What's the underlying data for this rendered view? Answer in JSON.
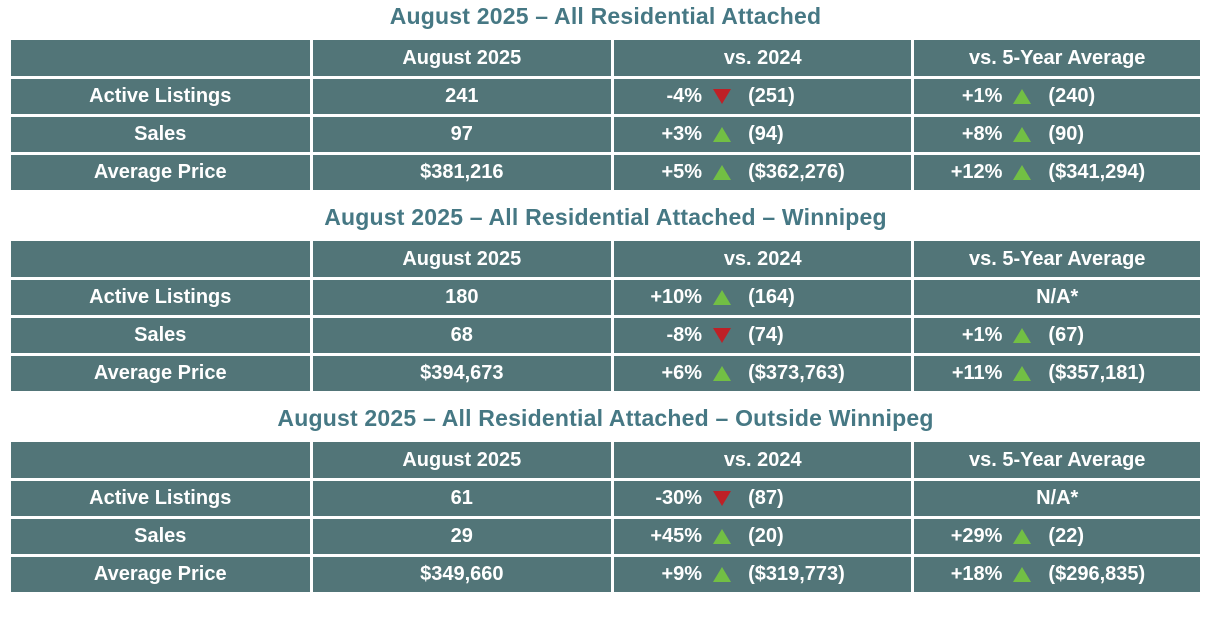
{
  "colors": {
    "page_bg": "#FFFFFF",
    "table_cell_bg": "#527578",
    "title_text": "#467884",
    "cell_text": "#FFFFFF",
    "trend_up_green": "#72BF44",
    "trend_down_red": "#BE2026",
    "grid_line": "#FFFFFF"
  },
  "tables": [
    {
      "title": "August 2025 – All Residential Attached",
      "headers": [
        "",
        "August 2025",
        "vs. 2024",
        "vs. 5-Year Average"
      ],
      "rows": [
        {
          "label": "Active Listings",
          "current": "241",
          "vs_2024": {
            "pct": "-4%",
            "dir": "down",
            "ref": "(251)"
          },
          "vs_5yr": {
            "pct": "+1%",
            "dir": "up",
            "ref": "(240)"
          }
        },
        {
          "label": "Sales",
          "current": "97",
          "vs_2024": {
            "pct": "+3%",
            "dir": "up",
            "ref": "(94)"
          },
          "vs_5yr": {
            "pct": "+8%",
            "dir": "up",
            "ref": "(90)"
          }
        },
        {
          "label": "Average Price",
          "current": "$381,216",
          "vs_2024": {
            "pct": "+5%",
            "dir": "up",
            "ref": "($362,276)"
          },
          "vs_5yr": {
            "pct": "+12%",
            "dir": "up",
            "ref": "($341,294)"
          }
        }
      ]
    },
    {
      "title": "August 2025 – All Residential Attached – Winnipeg",
      "headers": [
        "",
        "August 2025",
        "vs. 2024",
        "vs. 5-Year Average"
      ],
      "rows": [
        {
          "label": "Active Listings",
          "current": "180",
          "vs_2024": {
            "pct": "+10%",
            "dir": "up",
            "ref": "(164)"
          },
          "vs_5yr": {
            "na": "N/A*"
          }
        },
        {
          "label": "Sales",
          "current": "68",
          "vs_2024": {
            "pct": "-8%",
            "dir": "down",
            "ref": "(74)"
          },
          "vs_5yr": {
            "pct": "+1%",
            "dir": "up",
            "ref": "(67)"
          }
        },
        {
          "label": "Average Price",
          "current": "$394,673",
          "vs_2024": {
            "pct": "+6%",
            "dir": "up",
            "ref": "($373,763)"
          },
          "vs_5yr": {
            "pct": "+11%",
            "dir": "up",
            "ref": "($357,181)"
          }
        }
      ]
    },
    {
      "title": "August 2025 – All Residential Attached – Outside Winnipeg",
      "headers": [
        "",
        "August 2025",
        "vs. 2024",
        "vs. 5-Year Average"
      ],
      "rows": [
        {
          "label": "Active Listings",
          "current": "61",
          "vs_2024": {
            "pct": "-30%",
            "dir": "down",
            "ref": "(87)"
          },
          "vs_5yr": {
            "na": "N/A*"
          }
        },
        {
          "label": "Sales",
          "current": "29",
          "vs_2024": {
            "pct": "+45%",
            "dir": "up",
            "ref": "(20)"
          },
          "vs_5yr": {
            "pct": "+29%",
            "dir": "up",
            "ref": "(22)"
          }
        },
        {
          "label": "Average Price",
          "current": "$349,660",
          "vs_2024": {
            "pct": "+9%",
            "dir": "up",
            "ref": "($319,773)"
          },
          "vs_5yr": {
            "pct": "+18%",
            "dir": "up",
            "ref": "($296,835)"
          }
        }
      ]
    }
  ],
  "chart_data": [
    {
      "type": "table",
      "title": "August 2025 – All Residential Attached",
      "columns": [
        "",
        "August 2025",
        "vs. 2024",
        "vs. 5-Year Average"
      ],
      "rows": [
        [
          "Active Listings",
          "241",
          "-4% ▼ (251)",
          "+1% ▲ (240)"
        ],
        [
          "Sales",
          "97",
          "+3% ▲ (94)",
          "+8% ▲ (90)"
        ],
        [
          "Average Price",
          "$381,216",
          "+5% ▲ ($362,276)",
          "+12% ▲ ($341,294)"
        ]
      ]
    },
    {
      "type": "table",
      "title": "August 2025 – All Residential Attached – Winnipeg",
      "columns": [
        "",
        "August 2025",
        "vs. 2024",
        "vs. 5-Year Average"
      ],
      "rows": [
        [
          "Active Listings",
          "180",
          "+10% ▲ (164)",
          "N/A*"
        ],
        [
          "Sales",
          "68",
          "-8% ▼ (74)",
          "+1% ▲ (67)"
        ],
        [
          "Average Price",
          "$394,673",
          "+6% ▲ ($373,763)",
          "+11% ▲ ($357,181)"
        ]
      ]
    },
    {
      "type": "table",
      "title": "August 2025 – All Residential Attached – Outside Winnipeg",
      "columns": [
        "",
        "August 2025",
        "vs. 2024",
        "vs. 5-Year Average"
      ],
      "rows": [
        [
          "Active Listings",
          "61",
          "-30% ▼ (87)",
          "N/A*"
        ],
        [
          "Sales",
          "29",
          "+45% ▲ (20)",
          "+29% ▲ (22)"
        ],
        [
          "Average Price",
          "$349,660",
          "+9% ▲ ($319,773)",
          "+18% ▲ ($296,835)"
        ]
      ]
    }
  ]
}
